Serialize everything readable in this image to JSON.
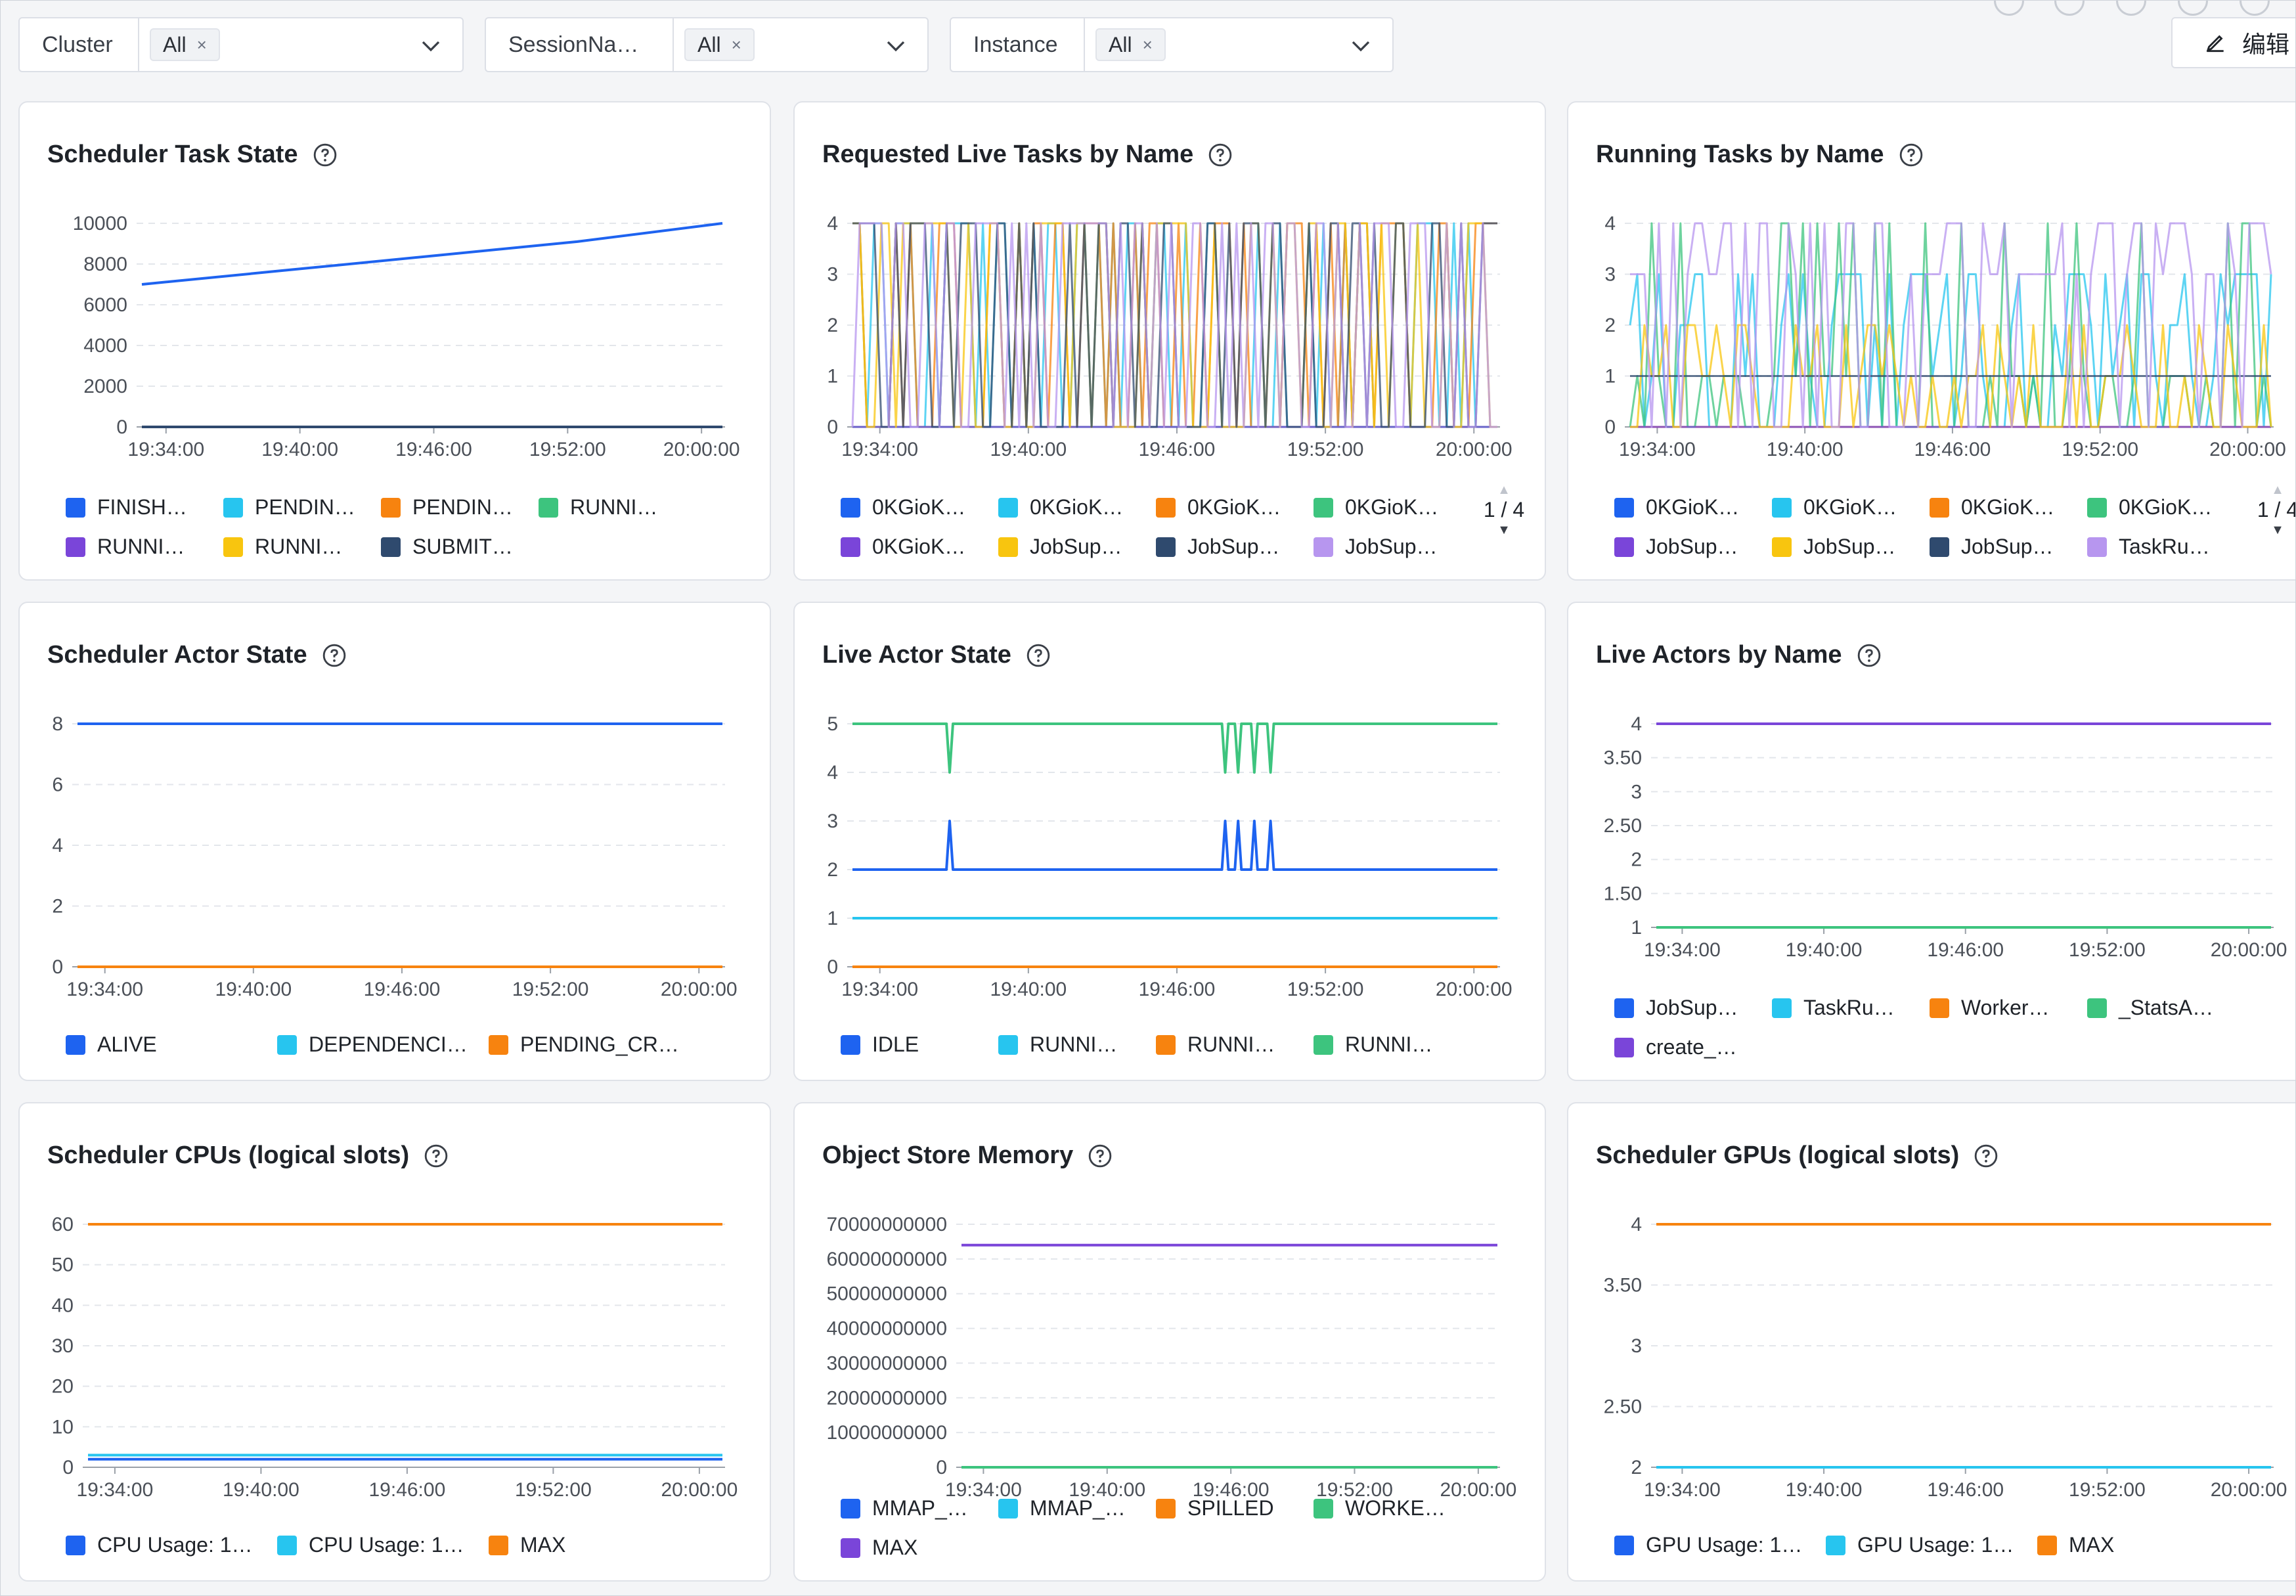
{
  "filters": [
    {
      "label": "Cluster",
      "tag": "All",
      "remove": "×"
    },
    {
      "label": "SessionNa…",
      "tag": "All",
      "remove": "×"
    },
    {
      "label": "Instance",
      "tag": "All",
      "remove": "×"
    }
  ],
  "toolbar": {
    "edit_label": "编辑"
  },
  "colors": {
    "blue": "#1e63f0",
    "cyan": "#27c5ef",
    "orange": "#f7830f",
    "green": "#3dc47e",
    "purple": "#7a45d9",
    "yellow": "#f8c50f",
    "navy": "#2f4a6e",
    "lavender": "#b796ef",
    "pink": "#ff7db8"
  },
  "panels": [
    {
      "title": "Scheduler Task State",
      "chart_data": {
        "type": "line",
        "title": "Scheduler Task State",
        "x": [
          "19:34:00",
          "19:40:00",
          "19:46:00",
          "19:52:00",
          "20:00:00"
        ],
        "yticks": [
          "10000",
          "8000",
          "6000",
          "4000",
          "2000",
          "0"
        ],
        "ylim": [
          0,
          10000
        ],
        "series": [
          {
            "name": "FINISH…",
            "color": "blue",
            "values": [
              7000,
              7700,
              8400,
              9100,
              10000
            ]
          },
          {
            "name": "PENDIN…",
            "color": "cyan",
            "values": [
              0,
              0,
              0,
              0,
              0
            ]
          },
          {
            "name": "PENDIN…",
            "color": "orange",
            "values": [
              0,
              0,
              0,
              0,
              0
            ]
          },
          {
            "name": "RUNNI…",
            "color": "green",
            "values": [
              0,
              0,
              0,
              0,
              0
            ]
          },
          {
            "name": "RUNNI…",
            "color": "purple",
            "values": [
              0,
              0,
              0,
              0,
              0
            ]
          },
          {
            "name": "RUNNI…",
            "color": "yellow",
            "values": [
              0,
              0,
              0,
              0,
              0
            ]
          },
          {
            "name": "SUBMIT…",
            "color": "navy",
            "values": [
              0,
              0,
              0,
              0,
              0
            ]
          }
        ]
      }
    },
    {
      "title": "Requested Live Tasks by Name",
      "pager": "1 / 4",
      "chart_data": {
        "type": "line",
        "title": "Requested Live Tasks by Name",
        "x": [
          "19:34:00",
          "19:40:00",
          "19:46:00",
          "19:52:00",
          "20:00:00"
        ],
        "yticks": [
          "4",
          "3",
          "2",
          "1",
          "0"
        ],
        "ylim": [
          0,
          4
        ],
        "series": [
          {
            "name": "0KGioK…",
            "color": "blue",
            "values": [
              0,
              0,
              0,
              0,
              0
            ]
          },
          {
            "name": "0KGioK…",
            "color": "cyan",
            "values": [
              4,
              0,
              4,
              0,
              4
            ]
          },
          {
            "name": "0KGioK…",
            "color": "orange",
            "values": [
              0,
              4,
              0,
              4,
              0
            ]
          },
          {
            "name": "0KGioK…",
            "color": "green",
            "values": [
              0,
              0,
              0,
              0,
              0
            ]
          },
          {
            "name": "0KGioK…",
            "color": "purple",
            "values": [
              0,
              0,
              0,
              0,
              0
            ]
          },
          {
            "name": "JobSup…",
            "color": "yellow",
            "values": [
              4,
              0,
              4,
              0,
              4
            ]
          },
          {
            "name": "JobSup…",
            "color": "navy",
            "values": [
              0,
              4,
              0,
              4,
              0
            ]
          },
          {
            "name": "JobSup…",
            "color": "lavender",
            "values": [
              4,
              4,
              0,
              4,
              4
            ]
          }
        ]
      }
    },
    {
      "title": "Running Tasks by Name",
      "pager": "1 / 4",
      "chart_data": {
        "type": "line",
        "title": "Running Tasks by Name",
        "x": [
          "19:34:00",
          "19:40:00",
          "19:46:00",
          "19:52:00",
          "20:00:00"
        ],
        "yticks": [
          "4",
          "3",
          "2",
          "1",
          "0"
        ],
        "ylim": [
          0,
          4
        ],
        "series": [
          {
            "name": "0KGioK…",
            "color": "blue",
            "values": [
              0,
              0,
              0,
              0,
              0
            ]
          },
          {
            "name": "0KGioK…",
            "color": "cyan",
            "values": [
              2,
              0,
              3,
              1,
              2
            ]
          },
          {
            "name": "0KGioK…",
            "color": "orange",
            "values": [
              0,
              0,
              0,
              0,
              0
            ]
          },
          {
            "name": "0KGioK…",
            "color": "green",
            "values": [
              4,
              1,
              4,
              0,
              4
            ]
          },
          {
            "name": "JobSup…",
            "color": "purple",
            "values": [
              0,
              0,
              0,
              0,
              0
            ]
          },
          {
            "name": "JobSup…",
            "color": "yellow",
            "values": [
              2,
              1,
              2,
              0,
              2
            ]
          },
          {
            "name": "JobSup…",
            "color": "navy",
            "values": [
              1,
              1,
              1,
              1,
              1
            ]
          },
          {
            "name": "TaskRu…",
            "color": "lavender",
            "values": [
              4,
              3,
              4,
              3,
              4
            ]
          }
        ]
      }
    },
    {
      "title": "Scheduler Actor State",
      "chart_data": {
        "type": "line",
        "title": "Scheduler Actor State",
        "x": [
          "19:34:00",
          "19:40:00",
          "19:46:00",
          "19:52:00",
          "20:00:00"
        ],
        "yticks": [
          "8",
          "6",
          "4",
          "2",
          "0"
        ],
        "ylim": [
          0,
          8
        ],
        "series": [
          {
            "name": "ALIVE",
            "color": "blue",
            "values": [
              8,
              8,
              8,
              8,
              8
            ]
          },
          {
            "name": "DEPENDENCI…",
            "color": "cyan",
            "values": [
              0,
              0,
              0,
              0,
              0
            ]
          },
          {
            "name": "PENDING_CR…",
            "color": "orange",
            "values": [
              0,
              0,
              0,
              0,
              0
            ]
          }
        ]
      }
    },
    {
      "title": "Live Actor State",
      "chart_data": {
        "type": "line",
        "title": "Live Actor State",
        "x": [
          "19:34:00",
          "19:40:00",
          "19:46:00",
          "19:52:00",
          "20:00:00"
        ],
        "yticks": [
          "5",
          "4",
          "3",
          "2",
          "1",
          "0"
        ],
        "ylim": [
          0,
          5
        ],
        "series": [
          {
            "name": "IDLE",
            "color": "blue",
            "values": [
              2,
              2,
              2,
              2,
              2
            ]
          },
          {
            "name": "RUNNI…",
            "color": "cyan",
            "values": [
              1,
              1,
              1,
              1,
              1
            ]
          },
          {
            "name": "RUNNI…",
            "color": "orange",
            "values": [
              0,
              0,
              0,
              0,
              0
            ]
          },
          {
            "name": "RUNNI…",
            "color": "green",
            "values": [
              5,
              5,
              5,
              5,
              5
            ]
          }
        ]
      }
    },
    {
      "title": "Live Actors by Name",
      "chart_data": {
        "type": "line",
        "title": "Live Actors by Name",
        "x": [
          "19:34:00",
          "19:40:00",
          "19:46:00",
          "19:52:00",
          "20:00:00"
        ],
        "yticks": [
          "4",
          "3.50",
          "3",
          "2.50",
          "2",
          "1.50",
          "1"
        ],
        "ylim": [
          1,
          4
        ],
        "series": [
          {
            "name": "JobSup…",
            "color": "blue",
            "values": [
              1,
              1,
              1,
              1,
              1
            ]
          },
          {
            "name": "TaskRu…",
            "color": "cyan",
            "values": [
              1,
              1,
              1,
              1,
              1
            ]
          },
          {
            "name": "Worker…",
            "color": "orange",
            "values": [
              1,
              1,
              1,
              1,
              1
            ]
          },
          {
            "name": "_StatsA…",
            "color": "green",
            "values": [
              1,
              1,
              1,
              1,
              1
            ]
          },
          {
            "name": "create_…",
            "color": "purple",
            "values": [
              4,
              4,
              4,
              4,
              4
            ]
          }
        ]
      }
    },
    {
      "title": "Scheduler CPUs (logical slots)",
      "chart_data": {
        "type": "line",
        "title": "Scheduler CPUs (logical slots)",
        "x": [
          "19:34:00",
          "19:40:00",
          "19:46:00",
          "19:52:00",
          "20:00:00"
        ],
        "yticks": [
          "60",
          "50",
          "40",
          "30",
          "20",
          "10",
          "0"
        ],
        "ylim": [
          0,
          60
        ],
        "series": [
          {
            "name": "CPU Usage: 1…",
            "color": "blue",
            "values": [
              2,
              2,
              2,
              2,
              2
            ]
          },
          {
            "name": "CPU Usage: 1…",
            "color": "cyan",
            "values": [
              3,
              3,
              3,
              3,
              3
            ]
          },
          {
            "name": "MAX",
            "color": "orange",
            "values": [
              60,
              60,
              60,
              60,
              60
            ]
          }
        ]
      }
    },
    {
      "title": "Object Store Memory",
      "chart_data": {
        "type": "line",
        "title": "Object Store Memory",
        "x": [
          "19:34:00",
          "19:40:00",
          "19:46:00",
          "19:52:00",
          "20:00:00"
        ],
        "yticks": [
          "70000000000",
          "60000000000",
          "50000000000",
          "40000000000",
          "30000000000",
          "20000000000",
          "10000000000",
          "0"
        ],
        "ylim": [
          0,
          70000000000
        ],
        "series": [
          {
            "name": "MMAP_…",
            "color": "blue",
            "values": [
              0,
              0,
              0,
              0,
              0
            ]
          },
          {
            "name": "MMAP_…",
            "color": "cyan",
            "values": [
              0,
              0,
              0,
              0,
              0
            ]
          },
          {
            "name": "SPILLED",
            "color": "orange",
            "values": [
              0,
              0,
              0,
              0,
              0
            ]
          },
          {
            "name": "WORKE…",
            "color": "green",
            "values": [
              0,
              0,
              0,
              0,
              0
            ]
          },
          {
            "name": "MAX",
            "color": "purple",
            "values": [
              64000000000,
              64000000000,
              64000000000,
              64000000000,
              64000000000
            ]
          }
        ]
      }
    },
    {
      "title": "Scheduler GPUs (logical slots)",
      "chart_data": {
        "type": "line",
        "title": "Scheduler GPUs (logical slots)",
        "x": [
          "19:34:00",
          "19:40:00",
          "19:46:00",
          "19:52:00",
          "20:00:00"
        ],
        "yticks": [
          "4",
          "3.50",
          "3",
          "2.50",
          "2"
        ],
        "ylim": [
          2,
          4
        ],
        "series": [
          {
            "name": "GPU Usage: 1…",
            "color": "blue",
            "values": [
              2,
              2,
              2,
              2,
              2
            ]
          },
          {
            "name": "GPU Usage: 1…",
            "color": "cyan",
            "values": [
              2,
              2,
              2,
              2,
              2
            ]
          },
          {
            "name": "MAX",
            "color": "orange",
            "values": [
              4,
              4,
              4,
              4,
              4
            ]
          }
        ]
      }
    }
  ]
}
